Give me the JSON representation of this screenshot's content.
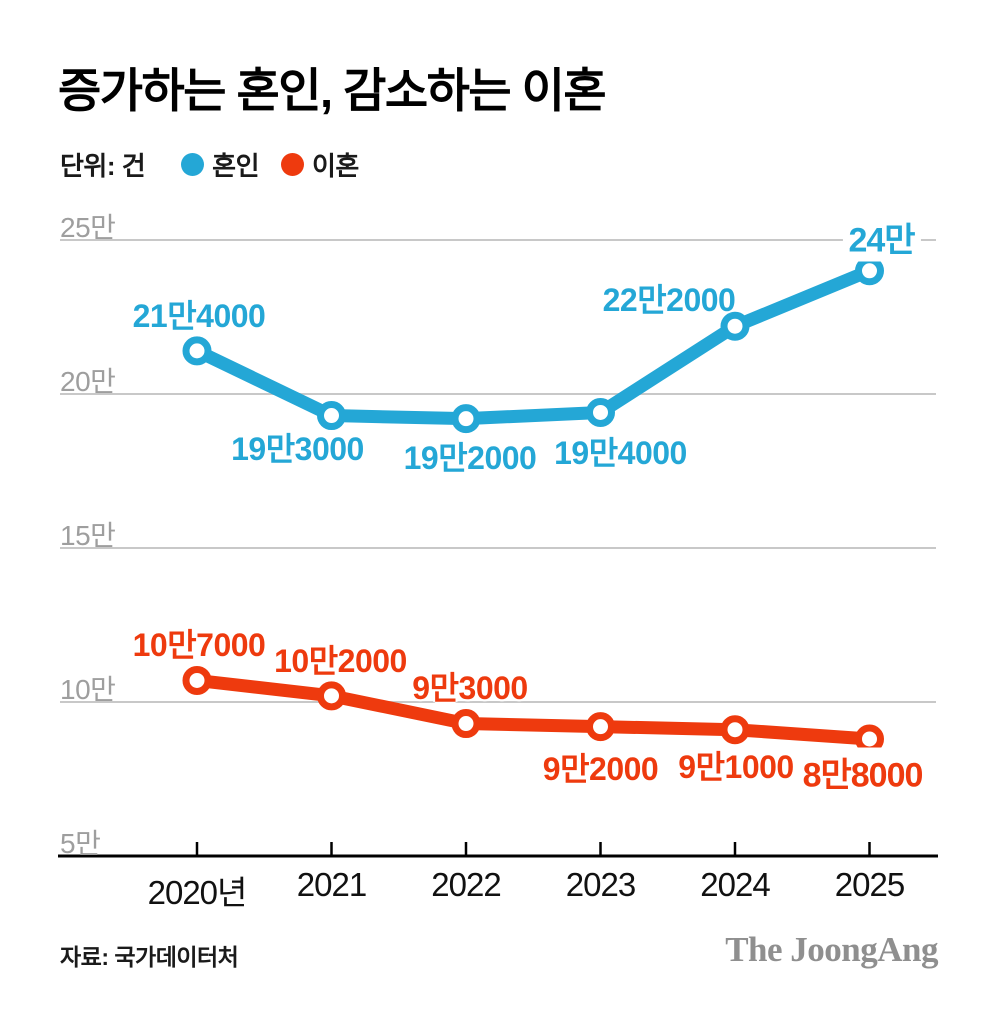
{
  "title": "증가하는 혼인, 감소하는 이혼",
  "legend": {
    "unit_label": "단위: 건",
    "items": [
      {
        "label": "혼인",
        "color": "#24a7d6"
      },
      {
        "label": "이혼",
        "color": "#ee3a0e"
      }
    ]
  },
  "chart_data": {
    "type": "line",
    "x": [
      "2020년",
      "2021",
      "2022",
      "2023",
      "2024",
      "2025"
    ],
    "series": [
      {
        "name": "혼인",
        "color": "#24a7d6",
        "values": [
          214000,
          193000,
          192000,
          194000,
          222000,
          240000
        ],
        "point_labels": [
          "21만4000",
          "19만3000",
          "19만2000",
          "19만4000",
          "22만2000",
          "24만"
        ],
        "emphasis_last": true
      },
      {
        "name": "이혼",
        "color": "#ee3a0e",
        "values": [
          107000,
          102000,
          93000,
          92000,
          91000,
          88000
        ],
        "point_labels": [
          "10만7000",
          "10만2000",
          "9만3000",
          "9만2000",
          "9만1000",
          "8만8000"
        ],
        "emphasis_last": true
      }
    ],
    "y_ticks": [
      {
        "value": 250000,
        "label": "25만"
      },
      {
        "value": 200000,
        "label": "20만"
      },
      {
        "value": 150000,
        "label": "15만"
      },
      {
        "value": 100000,
        "label": "10만"
      },
      {
        "value": 50000,
        "label": "5만"
      }
    ],
    "ylim": [
      50000,
      260000
    ],
    "grid": "horizontal",
    "legend_position": "top",
    "title": "증가하는 혼인, 감소하는 이혼",
    "unit": "건"
  },
  "footer": {
    "source": "자료: 국가데이터처",
    "brand": "The JoongAng"
  }
}
